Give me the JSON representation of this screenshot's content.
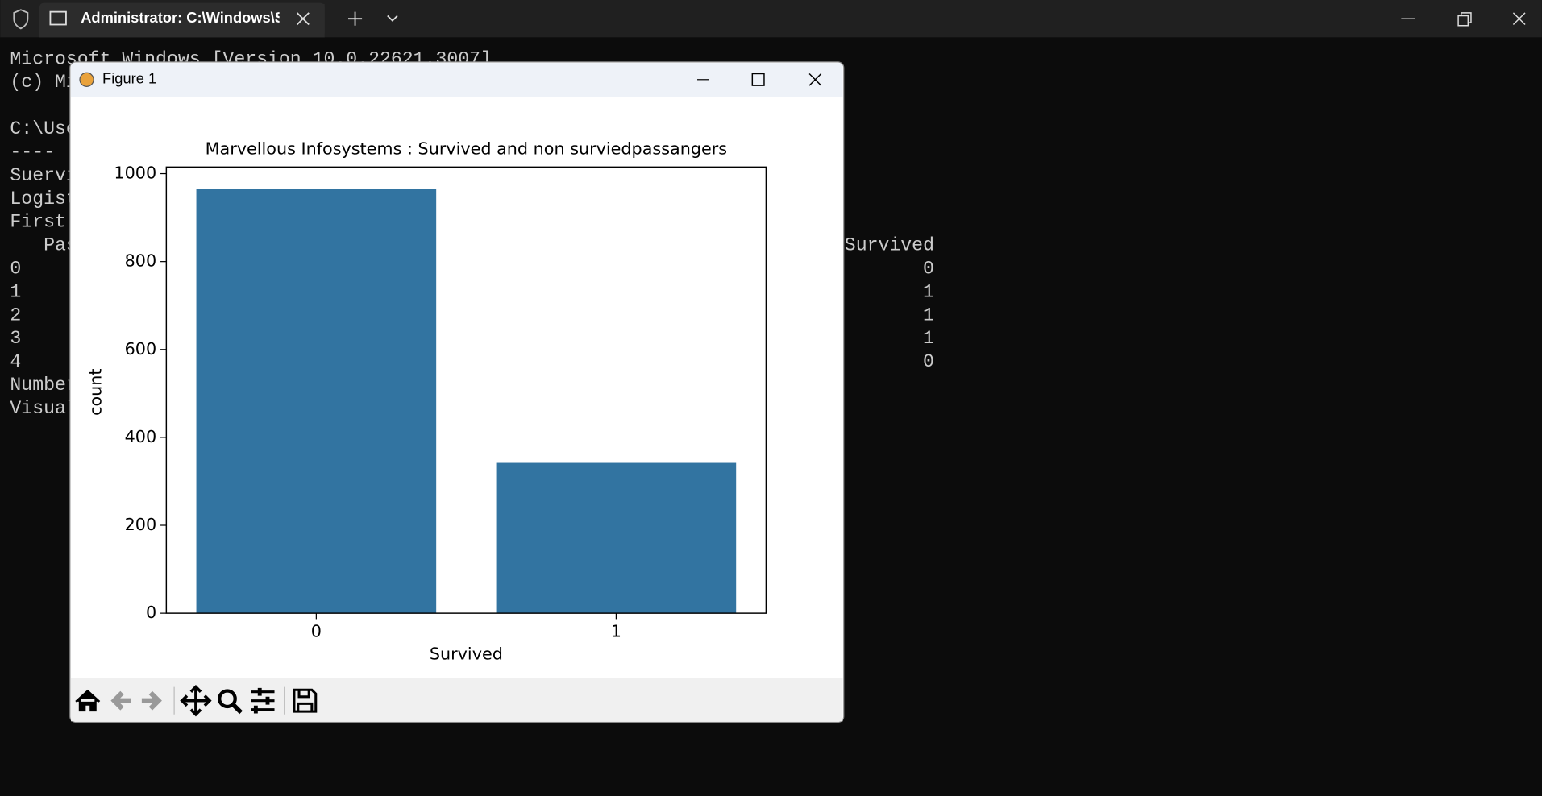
{
  "window": {
    "tab_title": "Administrator: C:\\Windows\\Sy"
  },
  "terminal": {
    "left_lines": [
      "Microsoft Windows [Version 10.0.22621.3007]",
      "(c) Mi",
      "C:\\Use",
      "---- ",
      "Suervi",
      "Logist",
      "First ",
      "   Pas",
      "0",
      "1",
      "2",
      "3",
      "4",
      "Number",
      "Visual"
    ],
    "right_lines": [
      "Survived",
      "0",
      "1",
      "1",
      "1",
      "0"
    ]
  },
  "figure_window": {
    "title": "Figure 1"
  },
  "chart_data": {
    "type": "bar",
    "title": "Marvellous Infosystems : Survived and non surviedpassangers",
    "x_label": "Survived",
    "y_label": "count",
    "categories": [
      "0",
      "1"
    ],
    "values": [
      966,
      342
    ],
    "color": "#3274a1",
    "ylim": [
      0,
      1015
    ],
    "yticks": [
      0,
      200,
      400,
      600,
      800,
      1000
    ],
    "grid": false
  }
}
